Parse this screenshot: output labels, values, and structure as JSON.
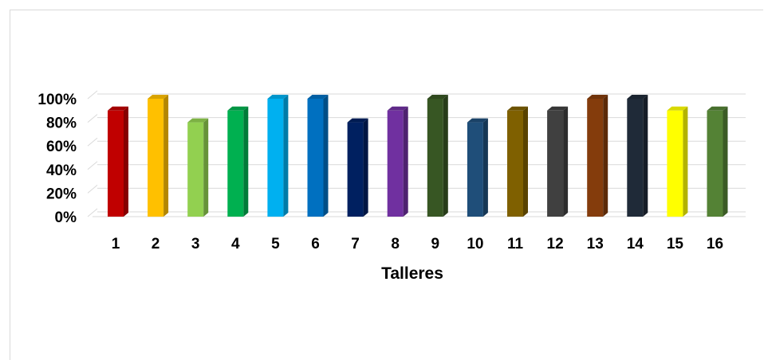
{
  "chart_data": {
    "type": "bar",
    "categories": [
      "1",
      "2",
      "3",
      "4",
      "5",
      "6",
      "7",
      "8",
      "9",
      "10",
      "11",
      "12",
      "13",
      "14",
      "15",
      "16"
    ],
    "series": [
      {
        "values": [
          0.9,
          1.0,
          0.8,
          0.9,
          1.0,
          1.0,
          0.8,
          0.9,
          1.0,
          0.8,
          0.9,
          0.9,
          1.0,
          1.0,
          0.9,
          0.9
        ]
      }
    ],
    "bar_colors": [
      "#C00000",
      "#FFC000",
      "#92D050",
      "#00B050",
      "#00B0F0",
      "#0070C0",
      "#002060",
      "#7030A0",
      "#375623",
      "#1F4E79",
      "#7F6000",
      "#404040",
      "#843C0C",
      "#1F2A38",
      "#FFFF00",
      "#548235"
    ],
    "title": "",
    "xlabel": "Talleres",
    "ylabel": "",
    "ylim": [
      0,
      1
    ],
    "yticks": [
      "0%",
      "20%",
      "40%",
      "60%",
      "80%",
      "100%"
    ],
    "grid": true,
    "style": "3d-column"
  }
}
